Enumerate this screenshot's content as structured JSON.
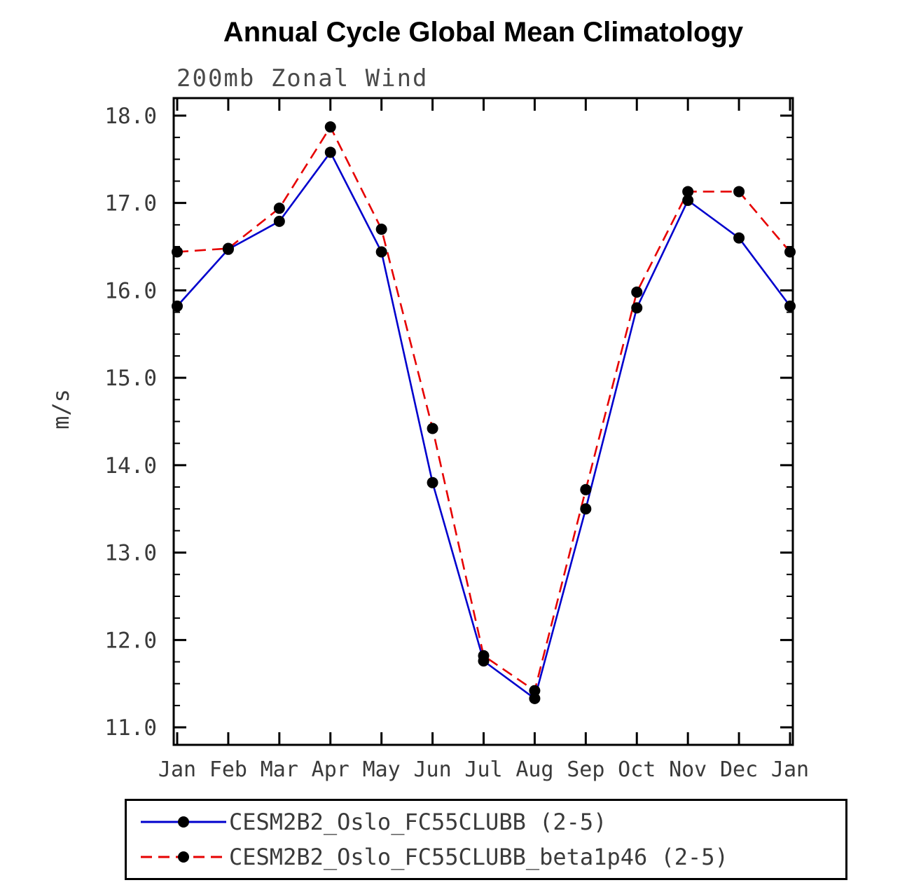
{
  "chart": {
    "title": "Annual Cycle Global Mean Climatology",
    "subtitle": "200mb Zonal Wind",
    "ylabel": "m/s"
  },
  "chart_data": {
    "type": "line",
    "title": "Annual Cycle Global Mean Climatology",
    "subtitle": "200mb Zonal Wind",
    "xlabel": "",
    "ylabel": "m/s",
    "categories": [
      "Jan",
      "Feb",
      "Mar",
      "Apr",
      "May",
      "Jun",
      "Jul",
      "Aug",
      "Sep",
      "Oct",
      "Nov",
      "Dec",
      "Jan"
    ],
    "ylim": [
      10.8,
      18.2
    ],
    "yticks": [
      11.0,
      12.0,
      13.0,
      14.0,
      15.0,
      16.0,
      17.0,
      18.0
    ],
    "ytick_labels": [
      "11.0",
      "12.0",
      "13.0",
      "14.0",
      "15.0",
      "16.0",
      "17.0",
      "18.0"
    ],
    "y_minor_step": 0.25,
    "grid": false,
    "legend_position": "bottom",
    "marker_color": "#000000",
    "axis_color": "#000000",
    "series": [
      {
        "name": "CESM2B2_Oslo_FC55CLUBB (2-5)",
        "color": "#0000cd",
        "style": "solid",
        "values": [
          15.82,
          16.47,
          16.79,
          17.58,
          16.44,
          13.8,
          11.76,
          11.33,
          13.5,
          15.8,
          17.03,
          16.6,
          15.82
        ]
      },
      {
        "name": "CESM2B2_Oslo_FC55CLUBB_beta1p46 (2-5)",
        "color": "#e60000",
        "style": "dashed",
        "values": [
          16.44,
          16.48,
          16.94,
          17.87,
          16.7,
          14.42,
          11.82,
          11.42,
          13.72,
          15.98,
          17.13,
          17.13,
          16.44
        ]
      }
    ]
  }
}
